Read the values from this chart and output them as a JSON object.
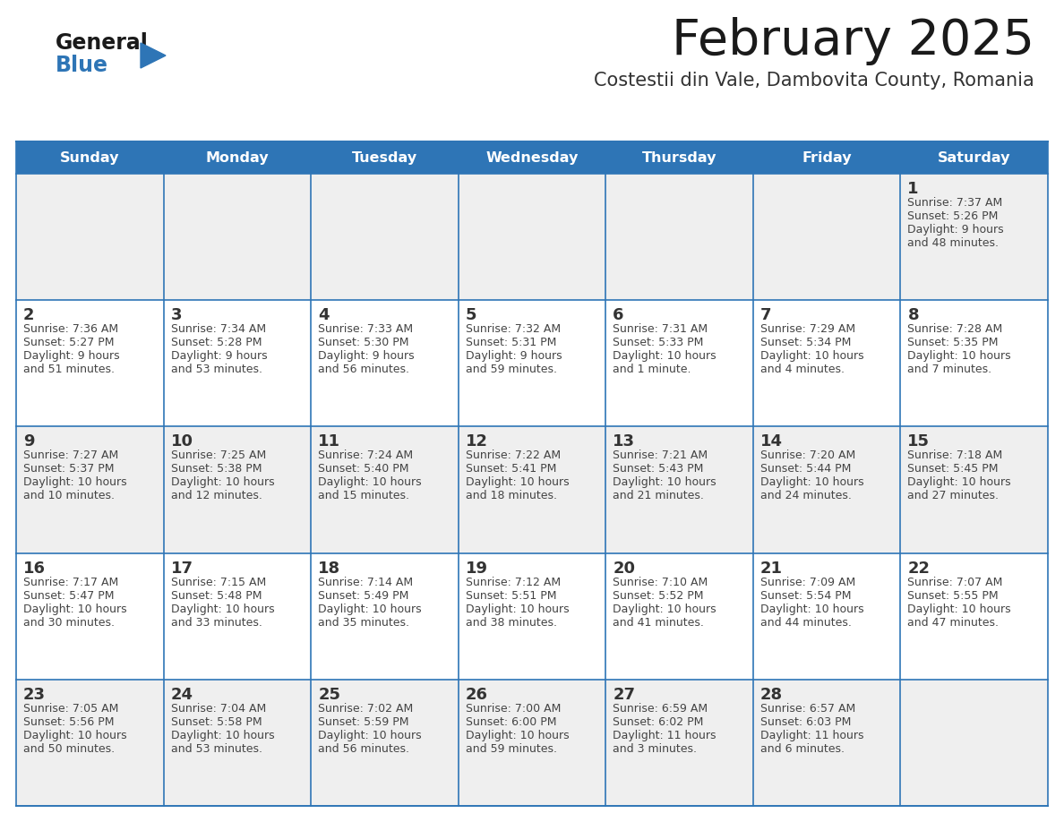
{
  "title": "February 2025",
  "subtitle": "Costestii din Vale, Dambovita County, Romania",
  "days_of_week": [
    "Sunday",
    "Monday",
    "Tuesday",
    "Wednesday",
    "Thursday",
    "Friday",
    "Saturday"
  ],
  "header_bg": "#2E75B6",
  "header_text": "#FFFFFF",
  "row_bg": [
    "#EFEFEF",
    "#FFFFFF",
    "#EFEFEF",
    "#FFFFFF",
    "#EFEFEF"
  ],
  "border_color": "#2E75B6",
  "title_color": "#222222",
  "subtitle_color": "#444444",
  "day_number_color": "#333333",
  "cell_text_color": "#444444",
  "calendar_data": [
    {
      "day": 1,
      "week": 0,
      "dow": 6,
      "sunrise": "7:37 AM",
      "sunset": "5:26 PM",
      "daylight": "9 hours and 48 minutes."
    },
    {
      "day": 2,
      "week": 1,
      "dow": 0,
      "sunrise": "7:36 AM",
      "sunset": "5:27 PM",
      "daylight": "9 hours and 51 minutes."
    },
    {
      "day": 3,
      "week": 1,
      "dow": 1,
      "sunrise": "7:34 AM",
      "sunset": "5:28 PM",
      "daylight": "9 hours and 53 minutes."
    },
    {
      "day": 4,
      "week": 1,
      "dow": 2,
      "sunrise": "7:33 AM",
      "sunset": "5:30 PM",
      "daylight": "9 hours and 56 minutes."
    },
    {
      "day": 5,
      "week": 1,
      "dow": 3,
      "sunrise": "7:32 AM",
      "sunset": "5:31 PM",
      "daylight": "9 hours and 59 minutes."
    },
    {
      "day": 6,
      "week": 1,
      "dow": 4,
      "sunrise": "7:31 AM",
      "sunset": "5:33 PM",
      "daylight": "10 hours and 1 minute."
    },
    {
      "day": 7,
      "week": 1,
      "dow": 5,
      "sunrise": "7:29 AM",
      "sunset": "5:34 PM",
      "daylight": "10 hours and 4 minutes."
    },
    {
      "day": 8,
      "week": 1,
      "dow": 6,
      "sunrise": "7:28 AM",
      "sunset": "5:35 PM",
      "daylight": "10 hours and 7 minutes."
    },
    {
      "day": 9,
      "week": 2,
      "dow": 0,
      "sunrise": "7:27 AM",
      "sunset": "5:37 PM",
      "daylight": "10 hours and 10 minutes."
    },
    {
      "day": 10,
      "week": 2,
      "dow": 1,
      "sunrise": "7:25 AM",
      "sunset": "5:38 PM",
      "daylight": "10 hours and 12 minutes."
    },
    {
      "day": 11,
      "week": 2,
      "dow": 2,
      "sunrise": "7:24 AM",
      "sunset": "5:40 PM",
      "daylight": "10 hours and 15 minutes."
    },
    {
      "day": 12,
      "week": 2,
      "dow": 3,
      "sunrise": "7:22 AM",
      "sunset": "5:41 PM",
      "daylight": "10 hours and 18 minutes."
    },
    {
      "day": 13,
      "week": 2,
      "dow": 4,
      "sunrise": "7:21 AM",
      "sunset": "5:43 PM",
      "daylight": "10 hours and 21 minutes."
    },
    {
      "day": 14,
      "week": 2,
      "dow": 5,
      "sunrise": "7:20 AM",
      "sunset": "5:44 PM",
      "daylight": "10 hours and 24 minutes."
    },
    {
      "day": 15,
      "week": 2,
      "dow": 6,
      "sunrise": "7:18 AM",
      "sunset": "5:45 PM",
      "daylight": "10 hours and 27 minutes."
    },
    {
      "day": 16,
      "week": 3,
      "dow": 0,
      "sunrise": "7:17 AM",
      "sunset": "5:47 PM",
      "daylight": "10 hours and 30 minutes."
    },
    {
      "day": 17,
      "week": 3,
      "dow": 1,
      "sunrise": "7:15 AM",
      "sunset": "5:48 PM",
      "daylight": "10 hours and 33 minutes."
    },
    {
      "day": 18,
      "week": 3,
      "dow": 2,
      "sunrise": "7:14 AM",
      "sunset": "5:49 PM",
      "daylight": "10 hours and 35 minutes."
    },
    {
      "day": 19,
      "week": 3,
      "dow": 3,
      "sunrise": "7:12 AM",
      "sunset": "5:51 PM",
      "daylight": "10 hours and 38 minutes."
    },
    {
      "day": 20,
      "week": 3,
      "dow": 4,
      "sunrise": "7:10 AM",
      "sunset": "5:52 PM",
      "daylight": "10 hours and 41 minutes."
    },
    {
      "day": 21,
      "week": 3,
      "dow": 5,
      "sunrise": "7:09 AM",
      "sunset": "5:54 PM",
      "daylight": "10 hours and 44 minutes."
    },
    {
      "day": 22,
      "week": 3,
      "dow": 6,
      "sunrise": "7:07 AM",
      "sunset": "5:55 PM",
      "daylight": "10 hours and 47 minutes."
    },
    {
      "day": 23,
      "week": 4,
      "dow": 0,
      "sunrise": "7:05 AM",
      "sunset": "5:56 PM",
      "daylight": "10 hours and 50 minutes."
    },
    {
      "day": 24,
      "week": 4,
      "dow": 1,
      "sunrise": "7:04 AM",
      "sunset": "5:58 PM",
      "daylight": "10 hours and 53 minutes."
    },
    {
      "day": 25,
      "week": 4,
      "dow": 2,
      "sunrise": "7:02 AM",
      "sunset": "5:59 PM",
      "daylight": "10 hours and 56 minutes."
    },
    {
      "day": 26,
      "week": 4,
      "dow": 3,
      "sunrise": "7:00 AM",
      "sunset": "6:00 PM",
      "daylight": "10 hours and 59 minutes."
    },
    {
      "day": 27,
      "week": 4,
      "dow": 4,
      "sunrise": "6:59 AM",
      "sunset": "6:02 PM",
      "daylight": "11 hours and 3 minutes."
    },
    {
      "day": 28,
      "week": 4,
      "dow": 5,
      "sunrise": "6:57 AM",
      "sunset": "6:03 PM",
      "daylight": "11 hours and 6 minutes."
    }
  ]
}
